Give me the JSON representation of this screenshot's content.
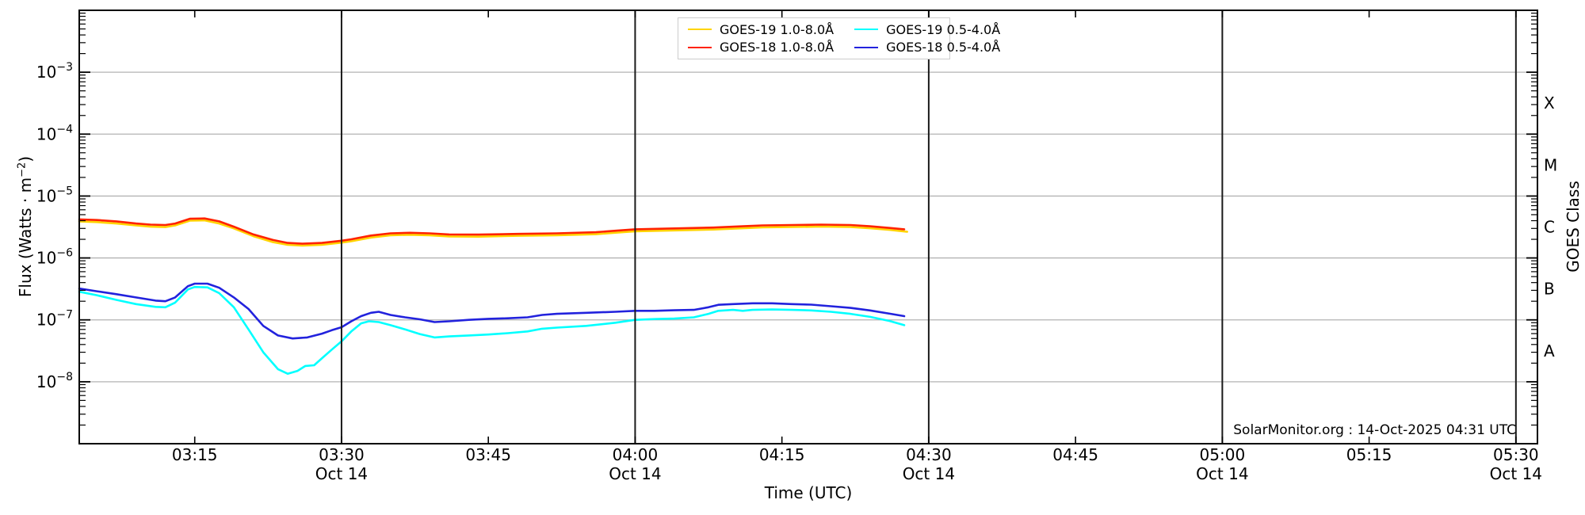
{
  "chart_data": {
    "type": "line",
    "source": "SolarMonitor GOES X-ray flux plot",
    "xlabel": "Time (UTC)",
    "ylabel": {
      "pre": "Flux (Watts · m",
      "sup": "−2",
      "post": ")"
    },
    "ylabel_right": "GOES Class",
    "annotation": "SolarMonitor.org : 14-Oct-2025 04:31 UTC",
    "grid": {
      "horizontal": true,
      "vertical_30min": true
    },
    "ylim": [
      1e-09,
      0.01
    ],
    "y_axis": {
      "labeled_exponents": [
        -3,
        -4,
        -5,
        -6,
        -7,
        -8
      ]
    },
    "right_axis": {
      "classes": [
        {
          "label": "X",
          "mid_exp": -3.5
        },
        {
          "label": "M",
          "mid_exp": -4.5
        },
        {
          "label": "C",
          "mid_exp": -5.5
        },
        {
          "label": "B",
          "mid_exp": -6.5
        },
        {
          "label": "A",
          "mid_exp": -7.5
        }
      ]
    },
    "x_axis": {
      "start_min": 3.2,
      "end_min": 152.2,
      "range_utc": [
        "03:03",
        "05:32"
      ],
      "vline_minutes": [
        30,
        60,
        90,
        120,
        150
      ],
      "major_ticks": [
        {
          "m": 15,
          "label": "03:15"
        },
        {
          "m": 30,
          "label": "03:30",
          "sub": "Oct 14"
        },
        {
          "m": 45,
          "label": "03:45"
        },
        {
          "m": 60,
          "label": "04:00",
          "sub": "Oct 14"
        },
        {
          "m": 75,
          "label": "04:15"
        },
        {
          "m": 90,
          "label": "04:30",
          "sub": "Oct 14"
        },
        {
          "m": 105,
          "label": "04:45"
        },
        {
          "m": 120,
          "label": "05:00",
          "sub": "Oct 14"
        },
        {
          "m": 135,
          "label": "05:15"
        },
        {
          "m": 150,
          "label": "05:30",
          "sub": "Oct 14"
        }
      ]
    },
    "legend": {
      "position": "top-center",
      "entries": [
        {
          "label": "GOES-19 1.0-8.0Å",
          "color": "#ffd400"
        },
        {
          "label": "GOES-18 1.0-8.0Å",
          "color": "#ff2200"
        },
        {
          "label": "GOES-19 0.5-4.0Å",
          "color": "#00ffff"
        },
        {
          "label": "GOES-18 0.5-4.0Å",
          "color": "#2222dd"
        }
      ]
    },
    "series": [
      {
        "name": "GOES-19 1.0-8.0Å",
        "color": "#ffd400",
        "z": 0,
        "points": [
          [
            3.2,
            3.9e-06
          ],
          [
            5,
            3.8e-06
          ],
          [
            7,
            3.6e-06
          ],
          [
            9,
            3.35e-06
          ],
          [
            10.5,
            3.2e-06
          ],
          [
            12,
            3.15e-06
          ],
          [
            13,
            3.35e-06
          ],
          [
            14.5,
            4e-06
          ],
          [
            16,
            4.05e-06
          ],
          [
            17.5,
            3.6e-06
          ],
          [
            19,
            3e-06
          ],
          [
            21,
            2.25e-06
          ],
          [
            23,
            1.8e-06
          ],
          [
            24.5,
            1.63e-06
          ],
          [
            26,
            1.58e-06
          ],
          [
            28,
            1.63e-06
          ],
          [
            30,
            1.77e-06
          ],
          [
            31,
            1.86e-06
          ],
          [
            33,
            2.14e-06
          ],
          [
            35,
            2.33e-06
          ],
          [
            37,
            2.37e-06
          ],
          [
            39,
            2.33e-06
          ],
          [
            41,
            2.23e-06
          ],
          [
            44,
            2.21e-06
          ],
          [
            48,
            2.28e-06
          ],
          [
            52,
            2.33e-06
          ],
          [
            56,
            2.42e-06
          ],
          [
            58,
            2.56e-06
          ],
          [
            60,
            2.7e-06
          ],
          [
            64,
            2.79e-06
          ],
          [
            68,
            2.88e-06
          ],
          [
            71,
            3.02e-06
          ],
          [
            73,
            3.12e-06
          ],
          [
            76,
            3.16e-06
          ],
          [
            79,
            3.21e-06
          ],
          [
            82,
            3.16e-06
          ],
          [
            84,
            3.02e-06
          ],
          [
            86,
            2.84e-06
          ],
          [
            87.8,
            2.65e-06
          ]
        ]
      },
      {
        "name": "GOES-19 0.5-4.0Å",
        "color": "#00ffff",
        "z": 1,
        "points": [
          [
            3.2,
            2.85e-07
          ],
          [
            5,
            2.5e-07
          ],
          [
            7,
            2.1e-07
          ],
          [
            9,
            1.8e-07
          ],
          [
            11,
            1.62e-07
          ],
          [
            12,
            1.6e-07
          ],
          [
            13,
            1.9e-07
          ],
          [
            14.3,
            3.1e-07
          ],
          [
            15,
            3.4e-07
          ],
          [
            16.3,
            3.35e-07
          ],
          [
            17.5,
            2.7e-07
          ],
          [
            19,
            1.6e-07
          ],
          [
            20.5,
            7e-08
          ],
          [
            22,
            3e-08
          ],
          [
            23.5,
            1.6e-08
          ],
          [
            24.5,
            1.35e-08
          ],
          [
            25.5,
            1.5e-08
          ],
          [
            26.3,
            1.8e-08
          ],
          [
            27.2,
            1.85e-08
          ],
          [
            28,
            2.4e-08
          ],
          [
            29,
            3.3e-08
          ],
          [
            30,
            4.5e-08
          ],
          [
            31,
            6.5e-08
          ],
          [
            32,
            8.8e-08
          ],
          [
            32.8,
            9.5e-08
          ],
          [
            33.8,
            9.2e-08
          ],
          [
            35,
            8.2e-08
          ],
          [
            36.5,
            7e-08
          ],
          [
            38,
            5.9e-08
          ],
          [
            39.5,
            5.2e-08
          ],
          [
            41,
            5.4e-08
          ],
          [
            43,
            5.6e-08
          ],
          [
            45,
            5.8e-08
          ],
          [
            47,
            6.1e-08
          ],
          [
            49,
            6.5e-08
          ],
          [
            50.5,
            7.2e-08
          ],
          [
            52,
            7.5e-08
          ],
          [
            55,
            8e-08
          ],
          [
            58,
            9e-08
          ],
          [
            60,
            1e-07
          ],
          [
            62,
            1.03e-07
          ],
          [
            64,
            1.05e-07
          ],
          [
            66,
            1.1e-07
          ],
          [
            67.5,
            1.25e-07
          ],
          [
            68.5,
            1.4e-07
          ],
          [
            70,
            1.45e-07
          ],
          [
            71,
            1.4e-07
          ],
          [
            72,
            1.45e-07
          ],
          [
            74,
            1.47e-07
          ],
          [
            76,
            1.45e-07
          ],
          [
            78,
            1.42e-07
          ],
          [
            80,
            1.35e-07
          ],
          [
            82,
            1.25e-07
          ],
          [
            84,
            1.12e-07
          ],
          [
            86,
            9.6e-08
          ],
          [
            87.5,
            8.2e-08
          ]
        ]
      },
      {
        "name": "GOES-18 1.0-8.0Å",
        "color": "#ff2200",
        "z": 2,
        "points": [
          [
            3.2,
            4.2e-06
          ],
          [
            5,
            4.1e-06
          ],
          [
            7,
            3.9e-06
          ],
          [
            9,
            3.6e-06
          ],
          [
            10.5,
            3.45e-06
          ],
          [
            12,
            3.4e-06
          ],
          [
            13,
            3.6e-06
          ],
          [
            14.5,
            4.3e-06
          ],
          [
            16,
            4.35e-06
          ],
          [
            17.5,
            3.9e-06
          ],
          [
            19,
            3.2e-06
          ],
          [
            21,
            2.4e-06
          ],
          [
            23,
            1.95e-06
          ],
          [
            24.5,
            1.75e-06
          ],
          [
            26,
            1.7e-06
          ],
          [
            28,
            1.75e-06
          ],
          [
            30,
            1.9e-06
          ],
          [
            31,
            2e-06
          ],
          [
            33,
            2.3e-06
          ],
          [
            35,
            2.5e-06
          ],
          [
            37,
            2.55e-06
          ],
          [
            39,
            2.5e-06
          ],
          [
            41,
            2.4e-06
          ],
          [
            44,
            2.38e-06
          ],
          [
            48,
            2.45e-06
          ],
          [
            52,
            2.5e-06
          ],
          [
            56,
            2.6e-06
          ],
          [
            58,
            2.75e-06
          ],
          [
            60,
            2.9e-06
          ],
          [
            64,
            3e-06
          ],
          [
            68,
            3.1e-06
          ],
          [
            71,
            3.25e-06
          ],
          [
            73,
            3.35e-06
          ],
          [
            76,
            3.4e-06
          ],
          [
            79,
            3.45e-06
          ],
          [
            82,
            3.4e-06
          ],
          [
            84,
            3.25e-06
          ],
          [
            86,
            3.05e-06
          ],
          [
            87.5,
            2.9e-06
          ]
        ]
      },
      {
        "name": "GOES-18 0.5-4.0Å",
        "color": "#2222dd",
        "z": 3,
        "points": [
          [
            3.2,
            3.2e-07
          ],
          [
            5,
            2.9e-07
          ],
          [
            7,
            2.6e-07
          ],
          [
            9,
            2.3e-07
          ],
          [
            11,
            2.05e-07
          ],
          [
            12,
            2e-07
          ],
          [
            13,
            2.3e-07
          ],
          [
            14.3,
            3.5e-07
          ],
          [
            15,
            3.85e-07
          ],
          [
            16.3,
            3.85e-07
          ],
          [
            17.5,
            3.3e-07
          ],
          [
            19,
            2.3e-07
          ],
          [
            20.5,
            1.5e-07
          ],
          [
            22,
            8e-08
          ],
          [
            23.5,
            5.6e-08
          ],
          [
            25,
            5e-08
          ],
          [
            26.5,
            5.2e-08
          ],
          [
            28,
            6e-08
          ],
          [
            29,
            6.8e-08
          ],
          [
            30,
            7.6e-08
          ],
          [
            31,
            9.5e-08
          ],
          [
            32,
            1.15e-07
          ],
          [
            33,
            1.3e-07
          ],
          [
            33.8,
            1.35e-07
          ],
          [
            35,
            1.2e-07
          ],
          [
            36.5,
            1.1e-07
          ],
          [
            38,
            1.02e-07
          ],
          [
            39.5,
            9.2e-08
          ],
          [
            41,
            9.5e-08
          ],
          [
            43,
            1e-07
          ],
          [
            45,
            1.04e-07
          ],
          [
            47,
            1.06e-07
          ],
          [
            49,
            1.1e-07
          ],
          [
            50.5,
            1.2e-07
          ],
          [
            52,
            1.25e-07
          ],
          [
            55,
            1.3e-07
          ],
          [
            58,
            1.35e-07
          ],
          [
            60,
            1.4e-07
          ],
          [
            62,
            1.4e-07
          ],
          [
            64,
            1.43e-07
          ],
          [
            66,
            1.45e-07
          ],
          [
            67.5,
            1.6e-07
          ],
          [
            68.5,
            1.75e-07
          ],
          [
            70,
            1.8e-07
          ],
          [
            72,
            1.85e-07
          ],
          [
            74,
            1.85e-07
          ],
          [
            76,
            1.8e-07
          ],
          [
            78,
            1.76e-07
          ],
          [
            80,
            1.66e-07
          ],
          [
            82,
            1.56e-07
          ],
          [
            84,
            1.42e-07
          ],
          [
            86,
            1.26e-07
          ],
          [
            87.5,
            1.15e-07
          ]
        ]
      }
    ],
    "colors": {
      "grid": "#b3b3b3",
      "vline": "#1a1a1a",
      "spine": "#000000",
      "text": "#000000"
    }
  }
}
